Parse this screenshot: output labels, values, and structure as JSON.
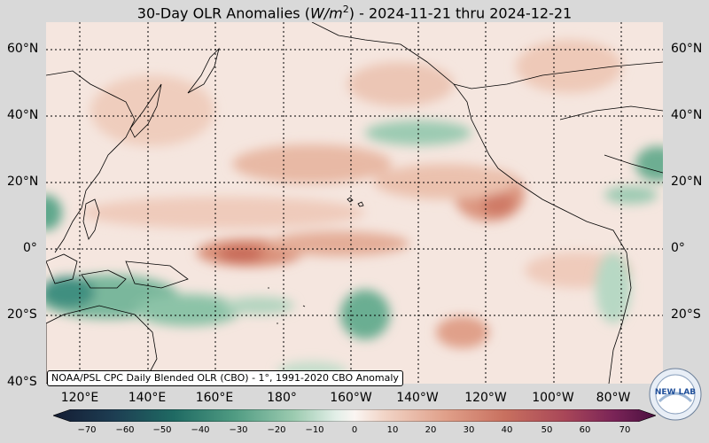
{
  "title": {
    "prefix": "30-Day OLR Anomalies (",
    "unit_base": "W/m",
    "unit_exp": "2",
    "suffix": ") - 2024-11-21 thru 2024-12-21"
  },
  "lat_labels": [
    "60°N",
    "40°N",
    "20°N",
    "0°",
    "20°S",
    "40°S"
  ],
  "lon_labels": [
    "120°E",
    "140°E",
    "160°E",
    "180°",
    "160°W",
    "140°W",
    "120°W",
    "100°W",
    "80°W"
  ],
  "source_note": "NOAA/PSL CPC Daily Blended OLR (CBO) - 1°, 1991-2020 CBO Anomaly",
  "colorbar": {
    "ticks": [
      "−70",
      "−60",
      "−50",
      "−40",
      "−30",
      "−20",
      "−10",
      "0",
      "10",
      "20",
      "30",
      "40",
      "50",
      "60",
      "70"
    ],
    "negative_color": "#1e5a56",
    "positive_color": "#6a1c55"
  },
  "logo": {
    "text": "NEW LAB"
  }
}
